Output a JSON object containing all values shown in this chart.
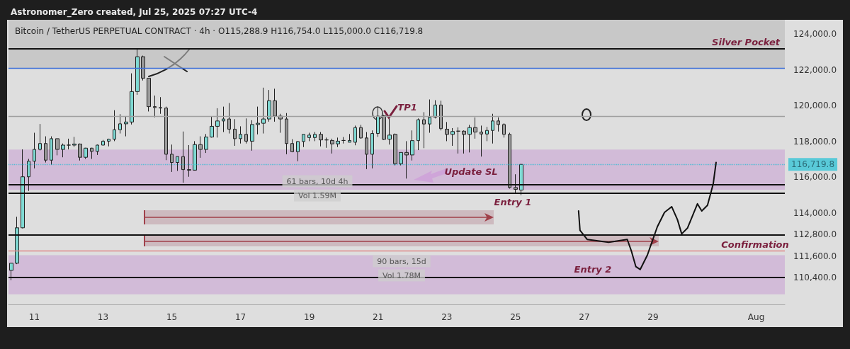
{
  "chart_data": {
    "type": "candlestick",
    "title": "Bitcoin / TetherUS PERPETUAL CONTRACT · 4h · O115,288.9 H116,754.0 L115,000.0 C116,719.8",
    "subtitle": "Astronomer_Zero created, Jul 25, 2025 07:27 UTC-4",
    "x": [
      "2025-07-10T08:00",
      "2025-07-10T12:00",
      "2025-07-10T16:00",
      "2025-07-10T20:00",
      "2025-07-11T00:00",
      "2025-07-11T04:00",
      "2025-07-11T08:00",
      "2025-07-11T12:00",
      "2025-07-11T16:00",
      "2025-07-11T20:00",
      "2025-07-12T00:00",
      "2025-07-12T04:00",
      "2025-07-12T08:00",
      "2025-07-12T12:00",
      "2025-07-12T16:00",
      "2025-07-12T20:00",
      "2025-07-13T00:00",
      "2025-07-13T04:00",
      "2025-07-13T08:00",
      "2025-07-13T12:00",
      "2025-07-13T16:00",
      "2025-07-13T20:00",
      "2025-07-14T00:00",
      "2025-07-14T04:00",
      "2025-07-14T08:00",
      "2025-07-14T12:00",
      "2025-07-14T16:00",
      "2025-07-14T20:00",
      "2025-07-15T00:00",
      "2025-07-15T04:00",
      "2025-07-15T08:00",
      "2025-07-15T12:00",
      "2025-07-15T16:00",
      "2025-07-15T20:00",
      "2025-07-16T00:00",
      "2025-07-16T04:00",
      "2025-07-16T08:00",
      "2025-07-16T12:00",
      "2025-07-16T16:00",
      "2025-07-16T20:00",
      "2025-07-17T00:00",
      "2025-07-17T04:00",
      "2025-07-17T08:00",
      "2025-07-17T12:00",
      "2025-07-17T16:00",
      "2025-07-17T20:00",
      "2025-07-18T00:00",
      "2025-07-18T04:00",
      "2025-07-18T08:00",
      "2025-07-18T12:00",
      "2025-07-18T16:00",
      "2025-07-18T20:00",
      "2025-07-19T00:00",
      "2025-07-19T04:00",
      "2025-07-19T08:00",
      "2025-07-19T12:00",
      "2025-07-19T16:00",
      "2025-07-19T20:00",
      "2025-07-20T00:00",
      "2025-07-20T04:00",
      "2025-07-20T08:00",
      "2025-07-20T12:00",
      "2025-07-20T16:00",
      "2025-07-20T20:00",
      "2025-07-21T00:00",
      "2025-07-21T04:00",
      "2025-07-21T08:00",
      "2025-07-21T12:00",
      "2025-07-21T16:00",
      "2025-07-21T20:00",
      "2025-07-22T00:00",
      "2025-07-22T04:00",
      "2025-07-22T08:00",
      "2025-07-22T12:00",
      "2025-07-22T16:00",
      "2025-07-22T20:00",
      "2025-07-23T00:00",
      "2025-07-23T04:00",
      "2025-07-23T08:00",
      "2025-07-23T12:00",
      "2025-07-23T16:00",
      "2025-07-23T20:00",
      "2025-07-24T00:00",
      "2025-07-24T04:00",
      "2025-07-24T08:00",
      "2025-07-24T12:00",
      "2025-07-24T16:00",
      "2025-07-24T20:00",
      "2025-07-25T00:00",
      "2025-07-25T04:00"
    ],
    "ohlc": [
      [
        110800,
        111200,
        110250,
        111200
      ],
      [
        111200,
        113800,
        111150,
        113180
      ],
      [
        113180,
        117560,
        113150,
        116030
      ],
      [
        116030,
        117030,
        115240,
        116900
      ],
      [
        116900,
        118490,
        116500,
        117560
      ],
      [
        117560,
        118980,
        117500,
        117890
      ],
      [
        117890,
        118290,
        116830,
        116960
      ],
      [
        116960,
        118290,
        116700,
        118160
      ],
      [
        118160,
        118160,
        117230,
        117560
      ],
      [
        117560,
        117890,
        117120,
        117800
      ],
      [
        117800,
        118160,
        117560,
        117800
      ],
      [
        117800,
        118260,
        117700,
        117860
      ],
      [
        117860,
        117890,
        116940,
        117120
      ],
      [
        117120,
        117650,
        117030,
        117630
      ],
      [
        117630,
        117650,
        117030,
        117450
      ],
      [
        117450,
        117830,
        117250,
        117800
      ],
      [
        117800,
        118090,
        117790,
        118020
      ],
      [
        118020,
        118160,
        117730,
        118130
      ],
      [
        118130,
        119750,
        118020,
        118660
      ],
      [
        118660,
        119530,
        118450,
        118990
      ],
      [
        118990,
        119420,
        118290,
        119090
      ],
      [
        119090,
        121810,
        118950,
        120790
      ],
      [
        120790,
        123200,
        120610,
        122740
      ],
      [
        122740,
        122800,
        121410,
        121540
      ],
      [
        121540,
        121540,
        119680,
        119950
      ],
      [
        119950,
        120570,
        119350,
        119900
      ],
      [
        119900,
        120480,
        119550,
        119870
      ],
      [
        119870,
        119950,
        116960,
        117290
      ],
      [
        117290,
        117830,
        116300,
        116830
      ],
      [
        116830,
        117160,
        116360,
        117160
      ],
      [
        117160,
        118560,
        115700,
        116430
      ],
      [
        116430,
        117800,
        116030,
        116400
      ],
      [
        116400,
        118020,
        116380,
        117830
      ],
      [
        117830,
        118290,
        117090,
        117560
      ],
      [
        117560,
        118420,
        117360,
        118250
      ],
      [
        118250,
        119380,
        118220,
        118850
      ],
      [
        118850,
        119860,
        118220,
        119150
      ],
      [
        119150,
        119950,
        118530,
        119260
      ],
      [
        119260,
        120150,
        118450,
        118690
      ],
      [
        118690,
        119250,
        117760,
        118160
      ],
      [
        118160,
        118850,
        117890,
        118400
      ],
      [
        118400,
        119290,
        117890,
        118020
      ],
      [
        118020,
        119190,
        117490,
        118950
      ],
      [
        118950,
        119950,
        118400,
        119020
      ],
      [
        119020,
        121010,
        118450,
        119260
      ],
      [
        119260,
        120880,
        119110,
        120280
      ],
      [
        120280,
        120950,
        119110,
        119420
      ],
      [
        119420,
        119550,
        118490,
        119260
      ],
      [
        119260,
        119590,
        117290,
        117890
      ],
      [
        117890,
        118130,
        117400,
        117430
      ],
      [
        117430,
        118020,
        116900,
        118000
      ],
      [
        118000,
        118400,
        117690,
        118400
      ],
      [
        118220,
        118490,
        118020,
        118360
      ],
      [
        118220,
        118530,
        118020,
        118400
      ],
      [
        118400,
        118530,
        117730,
        118090
      ],
      [
        118090,
        118220,
        117650,
        118090
      ],
      [
        118060,
        118160,
        117330,
        117870
      ],
      [
        117870,
        118220,
        117690,
        118020
      ],
      [
        118060,
        118250,
        117890,
        118060
      ],
      [
        117960,
        118420,
        117960,
        118060
      ],
      [
        117960,
        118890,
        117790,
        118780
      ],
      [
        118780,
        118930,
        118160,
        118200
      ],
      [
        118200,
        118530,
        116460,
        117290
      ],
      [
        117290,
        118620,
        116500,
        118450
      ],
      [
        118450,
        119950,
        118260,
        119420
      ],
      [
        119440,
        119490,
        118090,
        118120
      ],
      [
        118130,
        119290,
        117830,
        118360
      ],
      [
        118400,
        118450,
        116670,
        116760
      ],
      [
        116760,
        117390,
        116670,
        117390
      ],
      [
        117390,
        118020,
        115930,
        117250
      ],
      [
        117250,
        118620,
        116940,
        118050
      ],
      [
        118050,
        119290,
        117520,
        119220
      ],
      [
        119220,
        119640,
        117630,
        118980
      ],
      [
        118980,
        120350,
        118490,
        119350
      ],
      [
        119350,
        120310,
        119290,
        120040
      ],
      [
        120040,
        120280,
        118620,
        118720
      ],
      [
        118690,
        119090,
        118020,
        118400
      ],
      [
        118400,
        118750,
        117760,
        118560
      ],
      [
        118580,
        118790,
        117330,
        118580
      ],
      [
        118580,
        118620,
        117330,
        118400
      ],
      [
        118400,
        118930,
        117390,
        118780
      ],
      [
        118780,
        119350,
        118160,
        118530
      ],
      [
        118530,
        118890,
        117160,
        118420
      ],
      [
        118420,
        118820,
        118020,
        118620
      ],
      [
        118620,
        119550,
        117890,
        119150
      ],
      [
        119150,
        119350,
        118560,
        118950
      ],
      [
        118950,
        119020,
        118220,
        118400
      ],
      [
        118400,
        118490,
        115370,
        115430
      ],
      [
        115430,
        116170,
        115100,
        115330
      ],
      [
        115288.9,
        116754.0,
        115000.0,
        116719.8
      ]
    ],
    "xlim": [
      "2025-07-10T06:00",
      "2025-08-01T20:00"
    ],
    "xticks": [
      {
        "value": "2025-07-11",
        "label": "11"
      },
      {
        "value": "2025-07-13",
        "label": "13"
      },
      {
        "value": "2025-07-15",
        "label": "15"
      },
      {
        "value": "2025-07-17",
        "label": "17"
      },
      {
        "value": "2025-07-19",
        "label": "19"
      },
      {
        "value": "2025-07-21",
        "label": "21"
      },
      {
        "value": "2025-07-23",
        "label": "23"
      },
      {
        "value": "2025-07-25",
        "label": "25"
      },
      {
        "value": "2025-07-27",
        "label": "27"
      },
      {
        "value": "2025-07-29",
        "label": "29"
      },
      {
        "value": "2025-08-01",
        "label": "Aug"
      }
    ],
    "ylim": [
      108900,
      124800
    ],
    "yticks": [
      {
        "value": 110400,
        "label": "110,400.0"
      },
      {
        "value": 111600,
        "label": "111,600.0"
      },
      {
        "value": 112800,
        "label": "112,800.0"
      },
      {
        "value": 114000,
        "label": "114,000.0"
      },
      {
        "value": 116000,
        "label": "116,000.0"
      },
      {
        "value": 118000,
        "label": "118,000.0"
      },
      {
        "value": 120000,
        "label": "120,000.0"
      },
      {
        "value": 122000,
        "label": "122,000.0"
      },
      {
        "value": 124000,
        "label": "124,000.0"
      }
    ],
    "grid": false,
    "bands": [
      {
        "axis": "y",
        "from": 122100,
        "to": 124800,
        "label": "Silver Pocket",
        "color": "#b9b9b9"
      },
      {
        "axis": "y",
        "from": 115300,
        "to": 117550,
        "color": "#c9a3d3"
      },
      {
        "axis": "y",
        "from": 109460,
        "to": 111650,
        "color": "#c9a3d3"
      }
    ],
    "ref_lines": [
      {
        "axis": "y",
        "value": 123200,
        "color": "#111111"
      },
      {
        "axis": "y",
        "value": 122100,
        "color": "#3f6fd8"
      },
      {
        "axis": "y",
        "value": 119400,
        "color": "#a0a0a0"
      },
      {
        "axis": "y",
        "value": 115600,
        "color": "#111111"
      },
      {
        "axis": "y",
        "value": 115100,
        "color": "#111111"
      },
      {
        "axis": "y",
        "value": 112800,
        "color": "#111111"
      },
      {
        "axis": "y",
        "value": 111900,
        "color": "#e08a8a"
      },
      {
        "axis": "y",
        "value": 110400,
        "color": "#111111"
      },
      {
        "axis": "y",
        "value": 116719.8,
        "label": "116,719.8",
        "color": "#00bcd4",
        "line_style": "dotted"
      }
    ],
    "series": [
      {
        "type": "line",
        "color": "#111111",
        "marker": "none",
        "x": [
          "2025-07-26T20:00",
          "2025-07-26T21:00",
          "2025-07-27T02:00",
          "2025-07-27T17:00",
          "2025-07-28T06:00",
          "2025-07-28T09:00",
          "2025-07-28T12:00",
          "2025-07-28T15:00",
          "2025-07-28T20:00",
          "2025-07-29T03:00",
          "2025-07-29T08:00",
          "2025-07-29T13:00",
          "2025-07-29T17:00",
          "2025-07-29T20:00",
          "2025-07-30T00:00",
          "2025-07-30T07:00",
          "2025-07-30T10:00",
          "2025-07-30T14:00",
          "2025-07-30T18:00",
          "2025-07-30T20:00"
        ],
        "values": [
          114120,
          113040,
          112530,
          112370,
          112530,
          111850,
          111010,
          110850,
          111650,
          113240,
          114040,
          114360,
          113640,
          112840,
          113160,
          114520,
          114120,
          114440,
          115630,
          116830
        ]
      }
    ],
    "annotations": [
      "TP1",
      "Update SL",
      "Entry 1",
      "Entry 2",
      "Confirmation",
      "61 bars, 10d 4h",
      "Vol 1.59M",
      "90 bars, 15d",
      "Vol 1.78M"
    ]
  }
}
